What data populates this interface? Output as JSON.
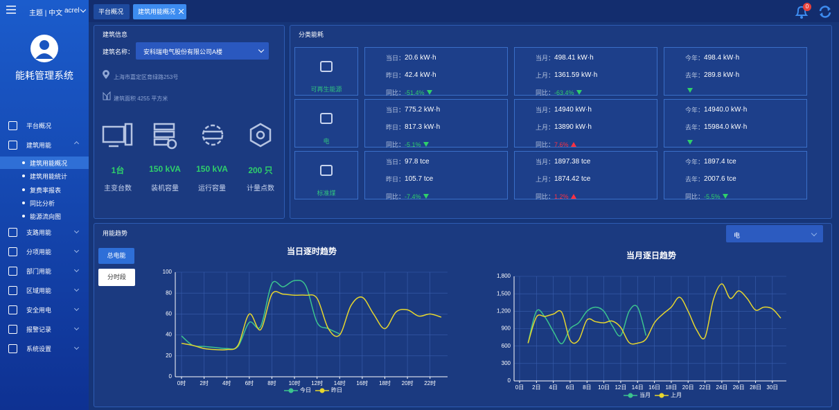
{
  "header": {
    "theme": "主题 | 中文",
    "user": "acrel",
    "notifications": 0
  },
  "sidebar": {
    "title": "能耗管理系统",
    "menu": [
      {
        "label": "平台概况"
      },
      {
        "label": "建筑用能",
        "children": [
          {
            "label": "建筑用能概况",
            "active": true
          },
          {
            "label": "建筑用能统计"
          },
          {
            "label": "复费率报表"
          },
          {
            "label": "同比分析"
          },
          {
            "label": "能源流向图"
          }
        ]
      },
      {
        "label": "支路用能"
      },
      {
        "label": "分项用能"
      },
      {
        "label": "部门用能"
      },
      {
        "label": "区域用能"
      },
      {
        "label": "安全用电"
      },
      {
        "label": "报警记录"
      },
      {
        "label": "系统设置"
      }
    ]
  },
  "tabs": [
    {
      "label": "平台概况"
    },
    {
      "label": "建筑用能概况",
      "active": true
    }
  ],
  "building_info": {
    "title": "建筑信息",
    "name_label": "建筑名称：",
    "name": "安科瑞电气股份有限公司A楼",
    "address": "上海市嘉定区育绿路253号",
    "area": "建筑面积 4255 平方米",
    "stats": [
      {
        "value": "1台",
        "label": "主变台数"
      },
      {
        "value": "150 kVA",
        "label": "装机容量"
      },
      {
        "value": "150 kVA",
        "label": "运行容量"
      },
      {
        "value": "200 只",
        "label": "计量点数"
      }
    ]
  },
  "category_energy": {
    "title": "分类能耗",
    "rows": [
      {
        "name": "可再生能源",
        "cells": [
          [
            {
              "label": "当日：",
              "value": "20.6 kW·h"
            },
            {
              "label": "昨日：",
              "value": "42.4 kW·h"
            },
            {
              "label": "同比：",
              "value": "-51.4%",
              "trend": "down"
            }
          ],
          [
            {
              "label": "当月：",
              "value": "498.41 kW·h"
            },
            {
              "label": "上月：",
              "value": "1361.59 kW·h"
            },
            {
              "label": "同比：",
              "value": "-63.4%",
              "trend": "down"
            }
          ],
          [
            {
              "label": "今年：",
              "value": "498.4 kW·h"
            },
            {
              "label": "去年：",
              "value": "289.8 kW·h"
            },
            {
              "trend": "down"
            }
          ]
        ]
      },
      {
        "name": "电",
        "cells": [
          [
            {
              "label": "当日：",
              "value": "775.2 kW·h"
            },
            {
              "label": "昨日：",
              "value": "817.3 kW·h"
            },
            {
              "label": "同比：",
              "value": "-5.1%",
              "trend": "down"
            }
          ],
          [
            {
              "label": "当月：",
              "value": "14940 kW·h"
            },
            {
              "label": "上月：",
              "value": "13890 kW·h"
            },
            {
              "label": "同比：",
              "value": "7.6%",
              "trend": "up"
            }
          ],
          [
            {
              "label": "今年：",
              "value": "14940.0 kW·h"
            },
            {
              "label": "去年：",
              "value": "15984.0 kW·h"
            },
            {
              "trend": "down"
            }
          ]
        ]
      },
      {
        "name": "标准煤",
        "cells": [
          [
            {
              "label": "当日：",
              "value": "97.8 tce"
            },
            {
              "label": "昨日：",
              "value": "105.7 tce"
            },
            {
              "label": "同比：",
              "value": "-7.4%",
              "trend": "down"
            }
          ],
          [
            {
              "label": "当月：",
              "value": "1897.38 tce"
            },
            {
              "label": "上月：",
              "value": "1874.42 tce"
            },
            {
              "label": "同比：",
              "value": "1.2%",
              "trend": "up"
            }
          ],
          [
            {
              "label": "今年：",
              "value": "1897.4 tce"
            },
            {
              "label": "去年：",
              "value": "2007.6 tce"
            },
            {
              "label": "同比：",
              "value": "-5.5%",
              "trend": "down"
            }
          ]
        ]
      }
    ]
  },
  "trend": {
    "title": "用能趋势",
    "buttons": [
      "总电能",
      "分时段"
    ],
    "select": "电"
  },
  "chart_data": [
    {
      "type": "line",
      "title": "当日逐时趋势",
      "categories": [
        "0时",
        null,
        "2时",
        null,
        "4时",
        null,
        "6时",
        null,
        "8时",
        null,
        "10时",
        null,
        "12时",
        null,
        "14时",
        null,
        "16时",
        null,
        "18时",
        null,
        "20时",
        null,
        "22时",
        null
      ],
      "series": [
        {
          "name": "今日",
          "color": "#3cc48e",
          "values": [
            39,
            30,
            29,
            28,
            27,
            29,
            52,
            48,
            89,
            86,
            92,
            87,
            52,
            46,
            41,
            null,
            null,
            null,
            null,
            null,
            null,
            null,
            null,
            null
          ]
        },
        {
          "name": "昨日",
          "color": "#e6d62e",
          "values": [
            32,
            30,
            27,
            26,
            26,
            30,
            60,
            45,
            79,
            79,
            78,
            78,
            75,
            46,
            40,
            68,
            76,
            60,
            46,
            62,
            64,
            58,
            60,
            57
          ]
        }
      ],
      "ylim": [
        0,
        100
      ],
      "yticks": [
        0,
        20,
        40,
        60,
        80,
        100
      ],
      "grid": true,
      "legend": "bottom"
    },
    {
      "type": "line",
      "title": "当月逐日趋势",
      "categories": [
        "0日",
        null,
        "2日",
        null,
        "4日",
        null,
        "6日",
        null,
        "8日",
        null,
        "10日",
        null,
        "12日",
        null,
        "14日",
        null,
        "16日",
        null,
        "18日",
        null,
        "20日",
        null,
        "22日",
        null,
        "24日",
        null,
        "26日",
        null,
        "28日",
        null,
        "30日",
        null
      ],
      "series": [
        {
          "name": "当月",
          "color": "#3cc48e",
          "values": [
            null,
            650,
            1200,
            1100,
            850,
            640,
            900,
            1000,
            1200,
            1270,
            1200,
            950,
            780,
            1200,
            1270,
            780,
            null,
            null,
            null,
            null,
            null,
            null,
            null,
            null,
            null,
            null,
            null,
            null,
            null,
            null,
            null,
            null
          ]
        },
        {
          "name": "上月",
          "color": "#e6d62e",
          "values": [
            null,
            650,
            1100,
            1110,
            1150,
            1180,
            700,
            700,
            1050,
            1020,
            1000,
            1030,
            920,
            660,
            650,
            720,
            1000,
            1150,
            1270,
            1440,
            1200,
            880,
            750,
            1400,
            1670,
            1420,
            1550,
            1420,
            1220,
            1270,
            1240,
            1080
          ]
        }
      ],
      "ylim": [
        0,
        1800
      ],
      "yticks": [
        0,
        300,
        600,
        900,
        {
          "value": 1200,
          "label": "1,200"
        },
        {
          "value": 1500,
          "label": "1,500"
        },
        {
          "value": 1800,
          "label": "1,800"
        }
      ],
      "grid": true,
      "legend": "bottom"
    }
  ]
}
